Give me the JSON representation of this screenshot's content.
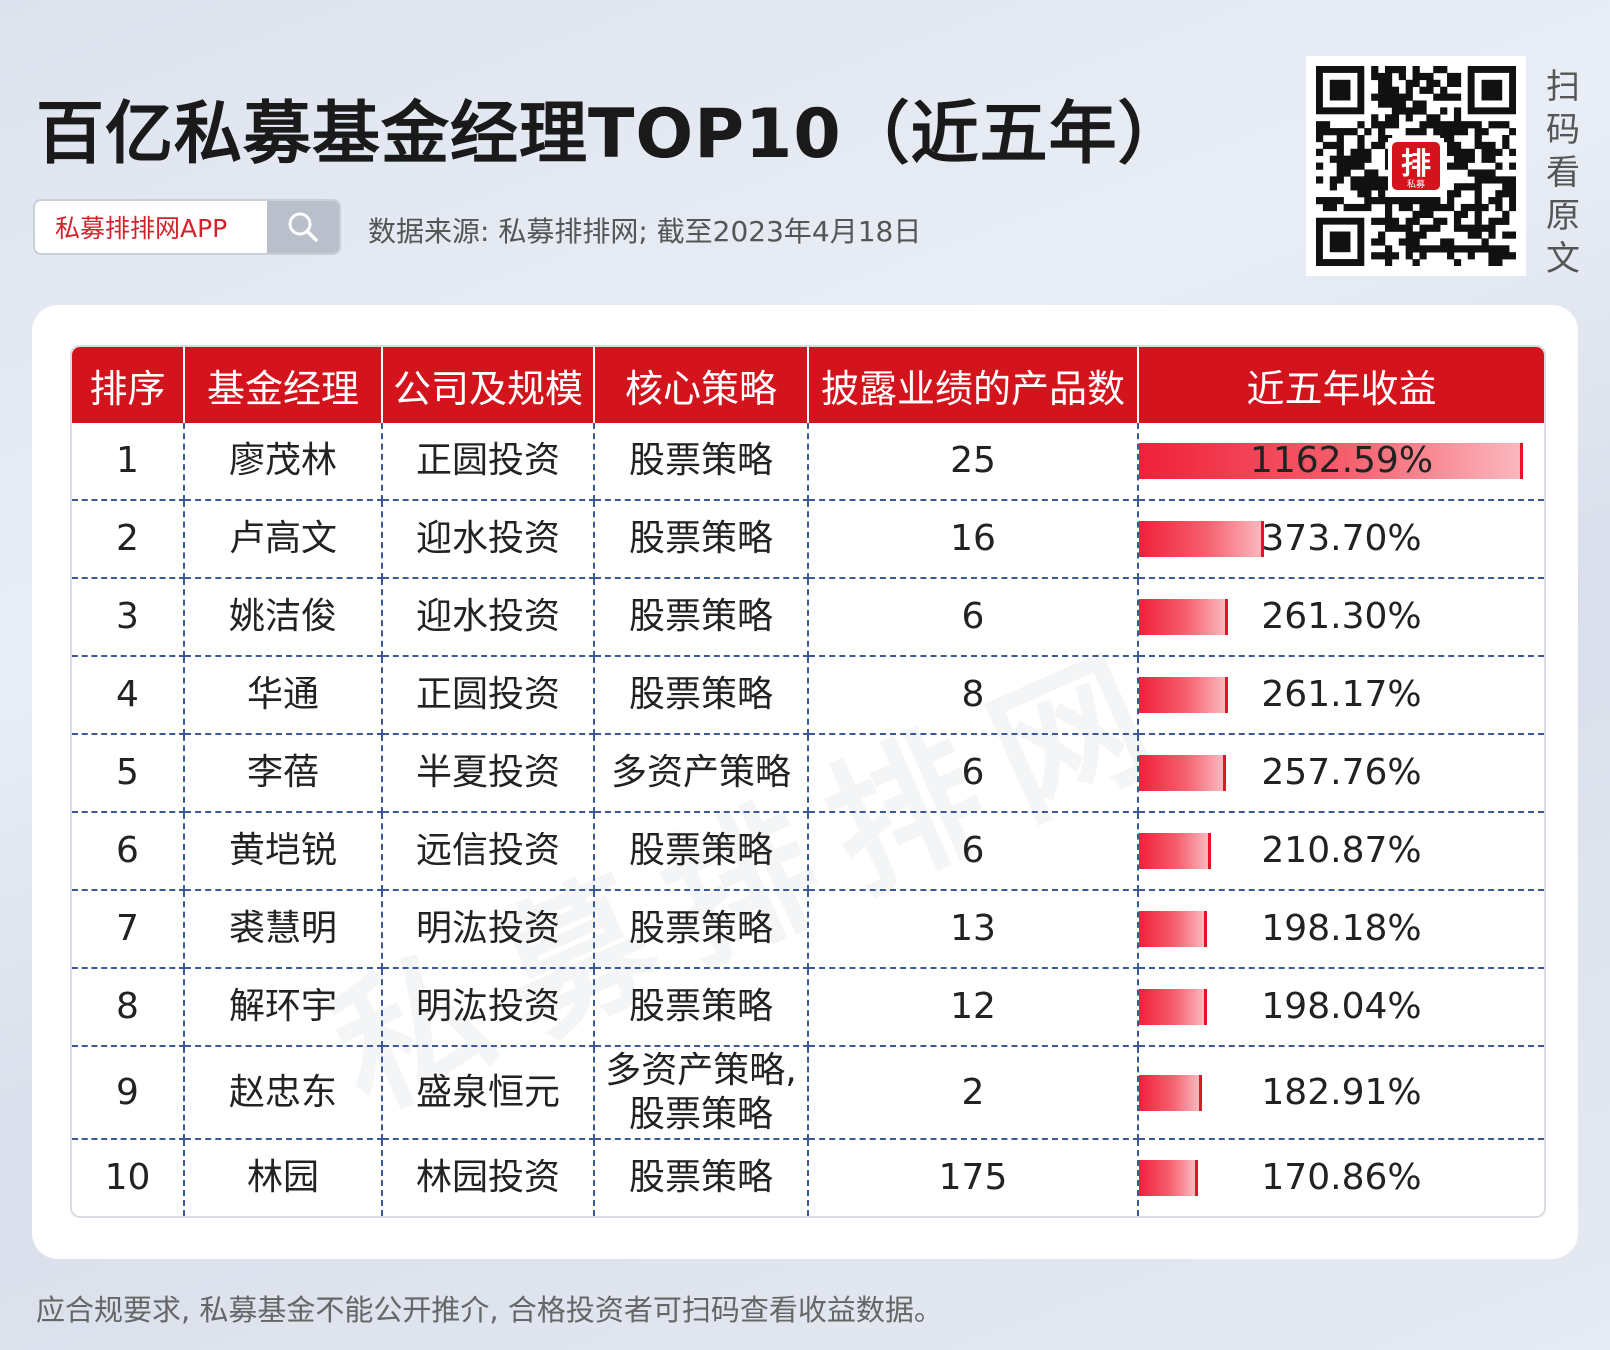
{
  "header": {
    "title": "百亿私募基金经理TOP10（近五年）",
    "search_text": "私募排排网APP",
    "source": "数据来源: 私募排排网; 截至2023年4月18日",
    "qr_caption": "扫码看原文",
    "qr_logo_text": "排",
    "qr_logo_sub": "私募"
  },
  "watermark": "私募排排网",
  "footer": "应合规要求, 私募基金不能公开推介, 合格投资者可扫码查看收益数据。",
  "colors": {
    "header_red": "#d4141d",
    "bar_red": "#f0203a",
    "divider_blue": "#3b5998"
  },
  "chart_data": {
    "type": "table",
    "columns": [
      "排序",
      "基金经理",
      "公司及规模",
      "核心策略",
      "披露业绩的产品数",
      "近五年收益"
    ],
    "rows": [
      {
        "rank": "1",
        "manager": "廖茂林",
        "company": "正圆投资",
        "strategy": "股票策略",
        "products": "25",
        "return_text": "1162.59%",
        "return": 1162.59
      },
      {
        "rank": "2",
        "manager": "卢高文",
        "company": "迎水投资",
        "strategy": "股票策略",
        "products": "16",
        "return_text": "373.70%",
        "return": 373.7
      },
      {
        "rank": "3",
        "manager": "姚洁俊",
        "company": "迎水投资",
        "strategy": "股票策略",
        "products": "6",
        "return_text": "261.30%",
        "return": 261.3
      },
      {
        "rank": "4",
        "manager": "华通",
        "company": "正圆投资",
        "strategy": "股票策略",
        "products": "8",
        "return_text": "261.17%",
        "return": 261.17
      },
      {
        "rank": "5",
        "manager": "李蓓",
        "company": "半夏投资",
        "strategy": "多资产策略",
        "products": "6",
        "return_text": "257.76%",
        "return": 257.76
      },
      {
        "rank": "6",
        "manager": "黄垲锐",
        "company": "远信投资",
        "strategy": "股票策略",
        "products": "6",
        "return_text": "210.87%",
        "return": 210.87
      },
      {
        "rank": "7",
        "manager": "裘慧明",
        "company": "明汯投资",
        "strategy": "股票策略",
        "products": "13",
        "return_text": "198.18%",
        "return": 198.18
      },
      {
        "rank": "8",
        "manager": "解环宇",
        "company": "明汯投资",
        "strategy": "股票策略",
        "products": "12",
        "return_text": "198.04%",
        "return": 198.04
      },
      {
        "rank": "9",
        "manager": "赵忠东",
        "company": "盛泉恒元",
        "strategy": "多资产策略, 股票策略",
        "products": "2",
        "return_text": "182.91%",
        "return": 182.91
      },
      {
        "rank": "10",
        "manager": "林园",
        "company": "林园投资",
        "strategy": "股票策略",
        "products": "175",
        "return_text": "170.86%",
        "return": 170.86
      }
    ],
    "return_max": 1162.59
  }
}
